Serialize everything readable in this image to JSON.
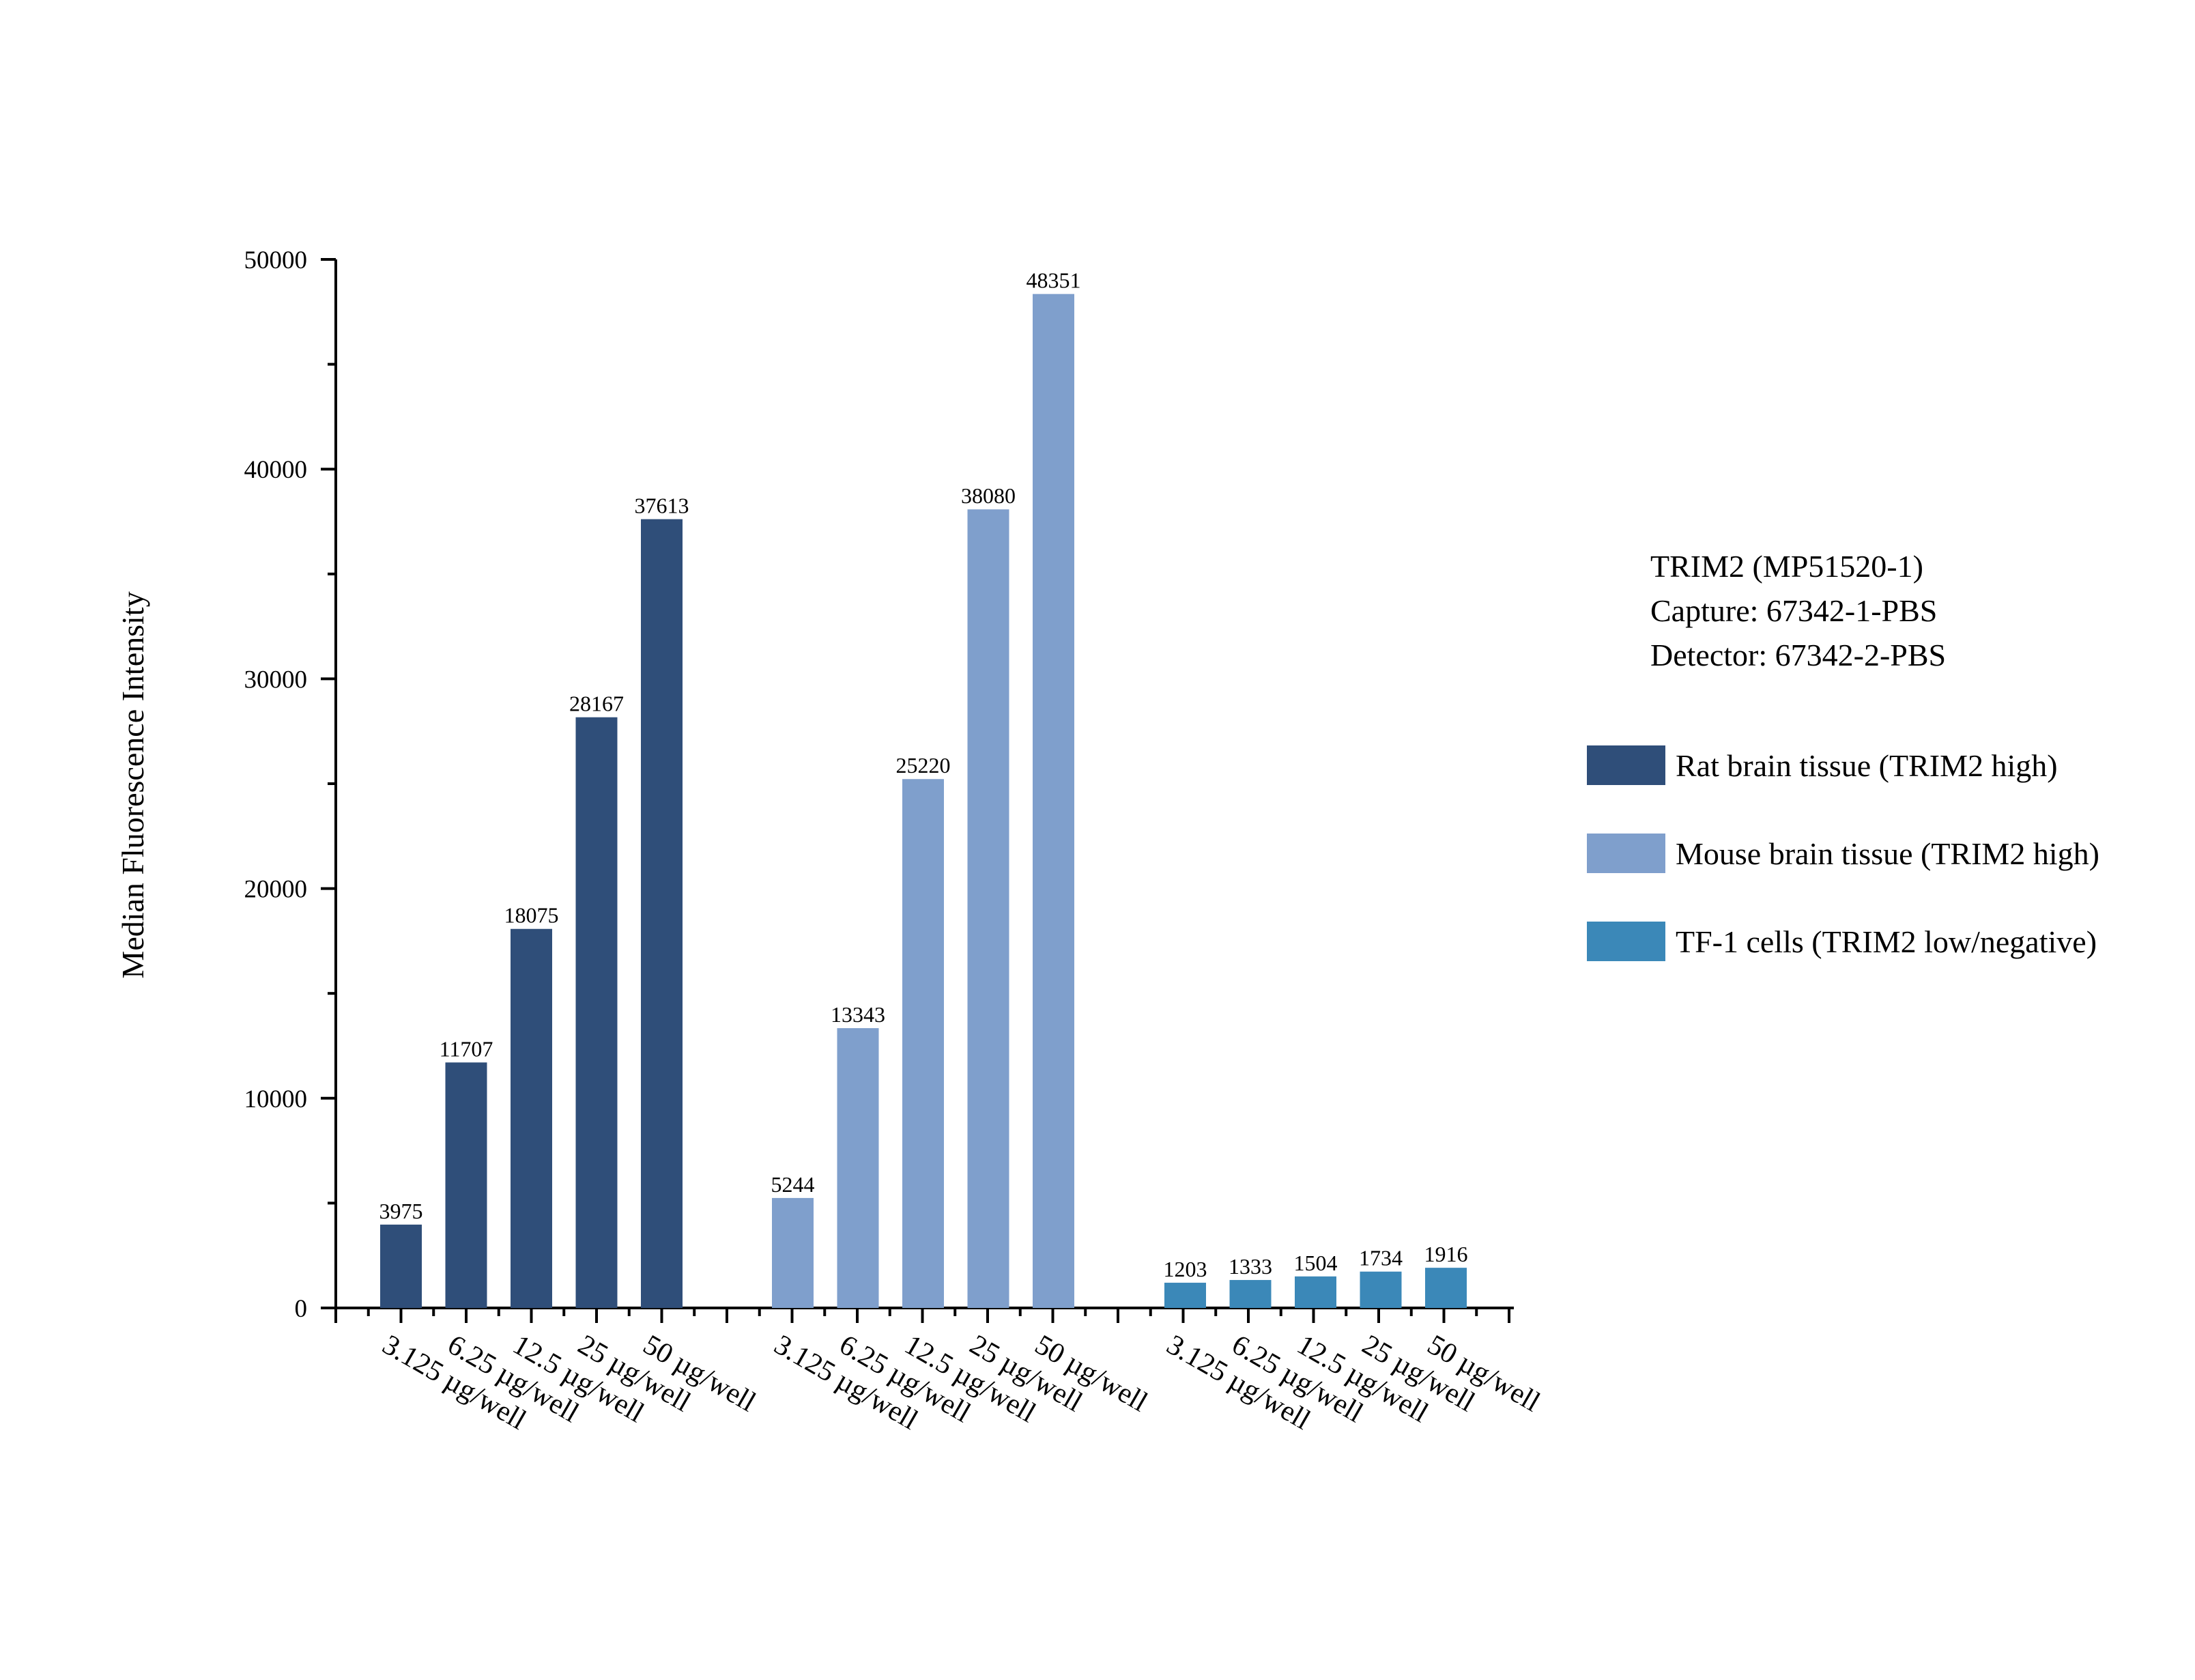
{
  "chart_data": {
    "type": "bar",
    "title": "",
    "xlabel": "",
    "ylabel": "Median Fluorescence Intensity",
    "ylim": [
      0,
      50000
    ],
    "yticks": [
      0,
      10000,
      20000,
      30000,
      40000,
      50000
    ],
    "grid": false,
    "legend_position": "right",
    "info_lines": [
      "TRIM2 (MP51520-1)",
      "Capture: 67342-1-PBS",
      "Detector: 67342-2-PBS"
    ],
    "categories": [
      "3.125 µg/well",
      "6.25 µg/well",
      "12.5 µg/well",
      "25 µg/well",
      "50 µg/well"
    ],
    "series": [
      {
        "name": "Rat brain tissue (TRIM2 high)",
        "color": "#2f4e79",
        "values": [
          3975,
          11707,
          18075,
          28167,
          37613
        ]
      },
      {
        "name": "Mouse brain tissue (TRIM2 high)",
        "color": "#7f9fcc",
        "values": [
          5244,
          13343,
          25220,
          38080,
          48351
        ]
      },
      {
        "name": "TF-1 cells (TRIM2 low/negative)",
        "color": "#3b88b8",
        "values": [
          1203,
          1333,
          1504,
          1734,
          1916
        ]
      }
    ]
  }
}
